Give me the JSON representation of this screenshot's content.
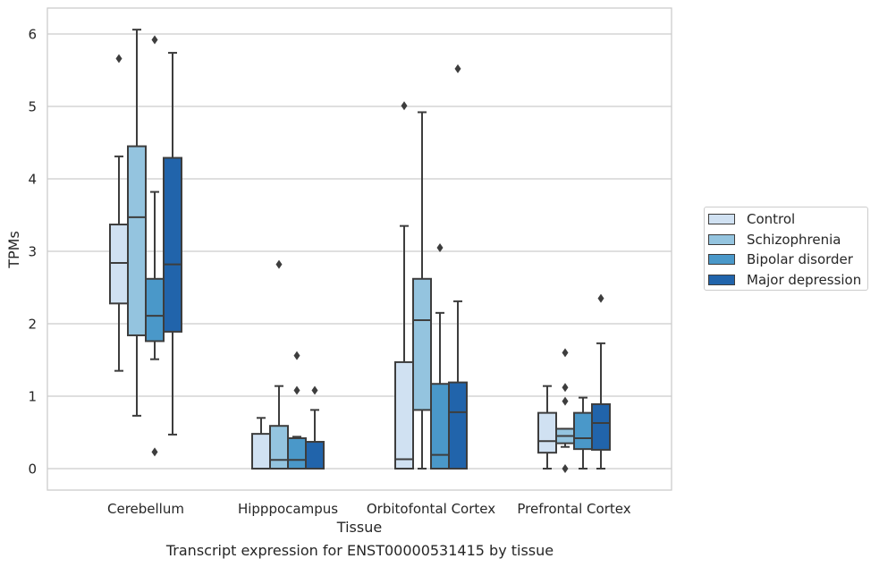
{
  "chart_data": {
    "type": "box",
    "title": "",
    "caption": "Transcript expression for ENST00000531415 by tissue",
    "xlabel": "Tissue",
    "ylabel": "TPMs",
    "ylim": [
      -0.3,
      6.35
    ],
    "yticks": [
      "0",
      "1",
      "2",
      "3",
      "4",
      "5",
      "6"
    ],
    "grid": true,
    "legend_position": "right",
    "categories": [
      "Cerebellum",
      "Hipppocampus",
      "Orbitofontal Cortex",
      "Prefrontal Cortex"
    ],
    "series": [
      {
        "name": "Control",
        "color": "#d0e1f2",
        "boxes": [
          {
            "whislo": 1.35,
            "q1": 2.28,
            "med": 2.84,
            "q3": 3.37,
            "whishi": 4.31,
            "fliers": [
              5.66
            ]
          },
          {
            "whislo": 0.0,
            "q1": 0.0,
            "med": 0.0,
            "q3": 0.48,
            "whishi": 0.7,
            "fliers": []
          },
          {
            "whislo": 0.0,
            "q1": 0.0,
            "med": 0.13,
            "q3": 1.47,
            "whishi": 3.35,
            "fliers": [
              5.01
            ]
          },
          {
            "whislo": 0.0,
            "q1": 0.22,
            "med": 0.38,
            "q3": 0.77,
            "whishi": 1.14,
            "fliers": []
          }
        ]
      },
      {
        "name": "Schizophrenia",
        "color": "#94c4df",
        "boxes": [
          {
            "whislo": 0.73,
            "q1": 1.84,
            "med": 3.47,
            "q3": 4.45,
            "whishi": 6.06,
            "fliers": []
          },
          {
            "whislo": 0.0,
            "q1": 0.0,
            "med": 0.12,
            "q3": 0.59,
            "whishi": 1.14,
            "fliers": [
              2.82
            ]
          },
          {
            "whislo": 0.0,
            "q1": 0.81,
            "med": 2.05,
            "q3": 2.62,
            "whishi": 4.92,
            "fliers": []
          },
          {
            "whislo": 0.3,
            "q1": 0.35,
            "med": 0.45,
            "q3": 0.55,
            "whishi": 0.55,
            "fliers": [
              1.6,
              1.12,
              0.93,
              0.0
            ]
          }
        ]
      },
      {
        "name": "Bipolar disorder",
        "color": "#4a98c9",
        "boxes": [
          {
            "whislo": 1.51,
            "q1": 1.76,
            "med": 2.11,
            "q3": 2.62,
            "whishi": 3.82,
            "fliers": [
              5.92,
              0.23
            ]
          },
          {
            "whislo": 0.0,
            "q1": 0.0,
            "med": 0.12,
            "q3": 0.42,
            "whishi": 0.44,
            "fliers": [
              1.56,
              1.08
            ]
          },
          {
            "whislo": 0.0,
            "q1": 0.0,
            "med": 0.19,
            "q3": 1.17,
            "whishi": 2.15,
            "fliers": [
              3.05
            ]
          },
          {
            "whislo": 0.0,
            "q1": 0.27,
            "med": 0.42,
            "q3": 0.77,
            "whishi": 0.98,
            "fliers": []
          }
        ]
      },
      {
        "name": "Major depression",
        "color": "#2164ab",
        "boxes": [
          {
            "whislo": 0.47,
            "q1": 1.89,
            "med": 2.82,
            "q3": 4.29,
            "whishi": 5.74,
            "fliers": []
          },
          {
            "whislo": 0.0,
            "q1": 0.0,
            "med": 0.0,
            "q3": 0.37,
            "whishi": 0.81,
            "fliers": [
              1.08
            ]
          },
          {
            "whislo": 0.0,
            "q1": 0.0,
            "med": 0.78,
            "q3": 1.19,
            "whishi": 2.31,
            "fliers": [
              5.52
            ]
          },
          {
            "whislo": 0.0,
            "q1": 0.26,
            "med": 0.63,
            "q3": 0.89,
            "whishi": 1.73,
            "fliers": [
              2.35
            ]
          }
        ]
      }
    ]
  }
}
